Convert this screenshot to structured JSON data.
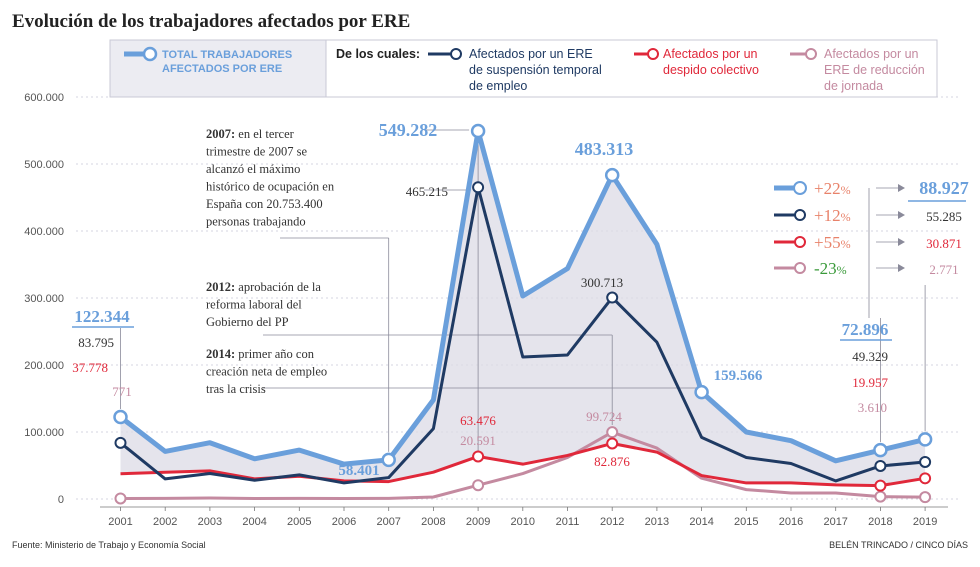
{
  "title": "Evolución de los trabajadores afectados por ERE",
  "legend": {
    "total": "TOTAL TRABAJADORES AFECTADOS POR ERE",
    "total_lines": [
      "TOTAL TRABAJADORES",
      "AFECTADOS POR ERE"
    ],
    "de_los_cuales": "De los cuales:",
    "suspension_lines": [
      "Afectados por un ERE",
      "de suspensión temporal",
      "de empleo"
    ],
    "despido_lines": [
      "Afectados por un",
      "despido colectivo"
    ],
    "reduccion_lines": [
      "Afectados por un",
      "ERE de reducción",
      "de jornada"
    ]
  },
  "colors": {
    "total": "#6a9fdb",
    "suspension": "#1f3a63",
    "despido": "#e0283a",
    "reduccion": "#c48aa0",
    "fill": "#dcdbe6",
    "green": "#3a9a3a",
    "salmon": "#e8826a",
    "grid": "#c9c9d6",
    "guide": "#8a8a9a"
  },
  "chart_data": {
    "type": "line",
    "title": "Evolución de los trabajadores afectados por ERE",
    "x": [
      2001,
      2002,
      2003,
      2004,
      2005,
      2006,
      2007,
      2008,
      2009,
      2010,
      2011,
      2012,
      2013,
      2014,
      2015,
      2016,
      2017,
      2018,
      2019
    ],
    "x_labels": [
      "2001",
      "2002",
      "2003",
      "2004",
      "2005",
      "2006",
      "2007",
      "2008",
      "2009",
      "2010",
      "2011",
      "2012",
      "2013",
      "2014",
      "2015",
      "2016",
      "2017",
      "2018",
      "2019"
    ],
    "ylim": [
      0,
      600000
    ],
    "y_ticks": [
      0,
      100000,
      200000,
      300000,
      400000,
      500000,
      600000
    ],
    "y_tick_labels": [
      "0",
      "100.000",
      "200.000",
      "300.000",
      "400.000",
      "500.000",
      "600.000"
    ],
    "grid": true,
    "series": [
      {
        "key": "total",
        "name": "Total trabajadores afectados por ERE",
        "values": [
          122344,
          71000,
          84000,
          60000,
          73000,
          52000,
          58401,
          148000,
          549282,
          303000,
          344000,
          483313,
          380000,
          159566,
          100000,
          87000,
          57000,
          72896,
          88927
        ]
      },
      {
        "key": "suspension",
        "name": "Afectados por un ERE de suspensión temporal de empleo",
        "values": [
          83795,
          30000,
          38000,
          28000,
          36000,
          24000,
          32000,
          105000,
          465215,
          212000,
          215000,
          300713,
          234000,
          92000,
          62000,
          53000,
          27000,
          49329,
          55285
        ]
      },
      {
        "key": "despido",
        "name": "Afectados por un despido colectivo",
        "values": [
          37778,
          40000,
          42000,
          30000,
          34000,
          27000,
          26000,
          40000,
          63476,
          52000,
          65000,
          82876,
          70000,
          35000,
          24000,
          24000,
          21000,
          19957,
          30871
        ]
      },
      {
        "key": "reduccion",
        "name": "Afectados por un ERE de reducción de jornada",
        "values": [
          771,
          1000,
          1500,
          800,
          1000,
          800,
          1000,
          3000,
          20591,
          38000,
          62000,
          99724,
          76000,
          31000,
          14000,
          9000,
          9000,
          3610,
          2771
        ]
      }
    ],
    "annotations": {
      "notes": [
        {
          "bold": "2007:",
          "lines": [
            "en el tercer",
            "trimestre de 2007 se",
            "alcanzó el máximo",
            "histórico de ocupación en",
            "España con 20.753.400",
            "personas trabajando"
          ]
        },
        {
          "bold": "2012:",
          "lines": [
            "aprobación de la",
            "reforma laboral del",
            "Gobierno del PP"
          ]
        },
        {
          "bold": "2014:",
          "lines": [
            "primer año con",
            "creación neta de empleo",
            "tras la crisis"
          ]
        }
      ],
      "labels_2001": [
        "122.344",
        "83.795",
        "37.778",
        "771"
      ],
      "label_2007": "58.401",
      "labels_2009": [
        "549.282",
        "465.215",
        "63.476",
        "20.591"
      ],
      "labels_2012": [
        "483.313",
        "300.713",
        "99.724",
        "82.876"
      ],
      "label_2014": "159.566",
      "labels_2018": [
        "72.896",
        "49.329",
        "19.957",
        "3.610"
      ],
      "changes": [
        {
          "key": "total",
          "pct": "+22",
          "unit": "%",
          "value": "88.927"
        },
        {
          "key": "suspension",
          "pct": "+12",
          "unit": "%",
          "value": "55.285"
        },
        {
          "key": "despido",
          "pct": "+55",
          "unit": "%",
          "value": "30.871"
        },
        {
          "key": "reduccion",
          "pct": "-23",
          "unit": "%",
          "value": "2.771"
        }
      ]
    }
  },
  "footer": {
    "source": "Fuente: Ministerio de Trabajo y Economía Social",
    "credit": "BELÉN TRINCADO / CINCO DÍAS"
  }
}
